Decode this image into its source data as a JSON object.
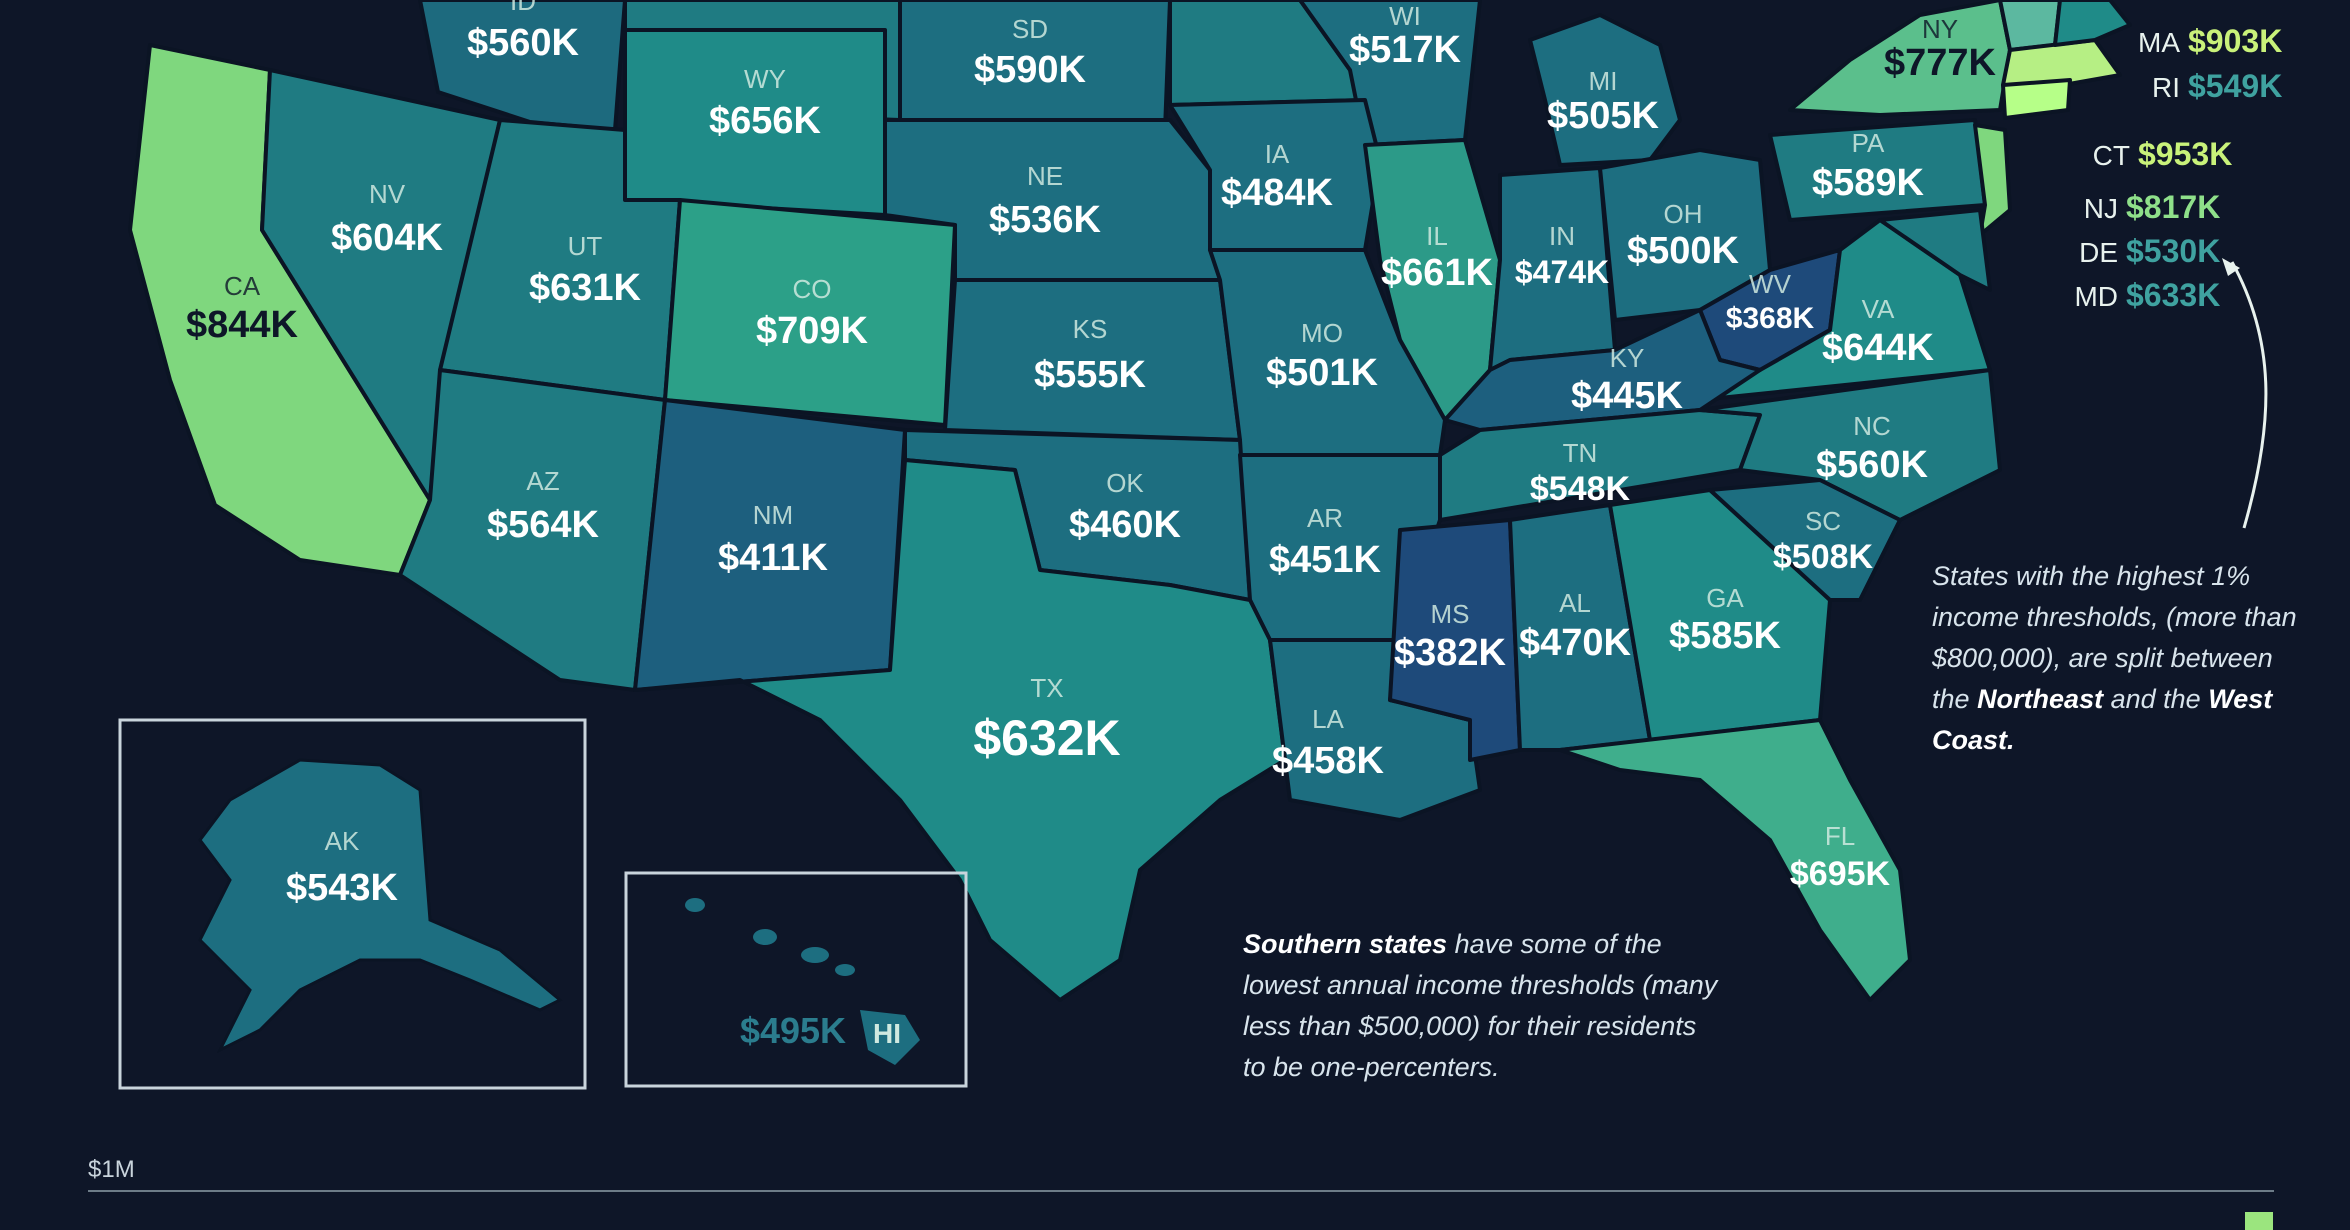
{
  "colors": {
    "background": "#0e1628",
    "scale_low": "#1e4a7a",
    "scale_high": "#b6ff88",
    "border": "#0b1424"
  },
  "states": {
    "id": {
      "abbr": "ID",
      "value": "$560K"
    },
    "sd": {
      "abbr": "SD",
      "value": "$590K"
    },
    "wi": {
      "abbr": "WI",
      "value": "$517K"
    },
    "ny": {
      "abbr": "NY",
      "value": "$777K"
    },
    "wy": {
      "abbr": "WY",
      "value": "$656K"
    },
    "mi": {
      "abbr": "MI",
      "value": "$505K"
    },
    "ca": {
      "abbr": "CA",
      "value": "$844K"
    },
    "nv": {
      "abbr": "NV",
      "value": "$604K"
    },
    "ne": {
      "abbr": "NE",
      "value": "$536K"
    },
    "ia": {
      "abbr": "IA",
      "value": "$484K"
    },
    "pa": {
      "abbr": "PA",
      "value": "$589K"
    },
    "ut": {
      "abbr": "UT",
      "value": "$631K"
    },
    "co": {
      "abbr": "CO",
      "value": "$709K"
    },
    "il": {
      "abbr": "IL",
      "value": "$661K"
    },
    "in": {
      "abbr": "IN",
      "value": "$474K"
    },
    "oh": {
      "abbr": "OH",
      "value": "$500K"
    },
    "wv": {
      "abbr": "WV",
      "value": "$368K"
    },
    "ks": {
      "abbr": "KS",
      "value": "$555K"
    },
    "mo": {
      "abbr": "MO",
      "value": "$501K"
    },
    "ky": {
      "abbr": "KY",
      "value": "$445K"
    },
    "va": {
      "abbr": "VA",
      "value": "$644K"
    },
    "az": {
      "abbr": "AZ",
      "value": "$564K"
    },
    "nm": {
      "abbr": "NM",
      "value": "$411K"
    },
    "ok": {
      "abbr": "OK",
      "value": "$460K"
    },
    "ar": {
      "abbr": "AR",
      "value": "$451K"
    },
    "tn": {
      "abbr": "TN",
      "value": "$548K"
    },
    "nc": {
      "abbr": "NC",
      "value": "$560K"
    },
    "sc": {
      "abbr": "SC",
      "value": "$508K"
    },
    "ms": {
      "abbr": "MS",
      "value": "$382K"
    },
    "al": {
      "abbr": "AL",
      "value": "$470K"
    },
    "ga": {
      "abbr": "GA",
      "value": "$585K"
    },
    "tx": {
      "abbr": "TX",
      "value": "$632K"
    },
    "la": {
      "abbr": "LA",
      "value": "$458K"
    },
    "fl": {
      "abbr": "FL",
      "value": "$695K"
    },
    "ak": {
      "abbr": "AK",
      "value": "$543K"
    },
    "hi": {
      "abbr": "HI",
      "value": "$495K"
    }
  },
  "side_list": [
    {
      "abbr": "MA",
      "value": "$903K",
      "color": "#c9f27a"
    },
    {
      "abbr": "RI",
      "value": "$549K",
      "color": "#3fa2a0"
    },
    {
      "abbr": "CT",
      "value": "$953K",
      "color": "#c9f27a"
    },
    {
      "abbr": "NJ",
      "value": "$817K",
      "color": "#8fe08a"
    },
    {
      "abbr": "DE",
      "value": "$530K",
      "color": "#3fa2a0"
    },
    {
      "abbr": "MD",
      "value": "$633K",
      "color": "#3fa2a0"
    }
  ],
  "notes": {
    "northeast": {
      "pre": "States with the highest 1% income thresholds, (more than $800,000), are split between the",
      "bold1": "Northeast",
      "mid": "and the",
      "bold2": "West Coast."
    },
    "south": {
      "bold": "Southern states",
      "rest": "have some of the lowest annual income thresholds (many less than $500,000) for their residents to be one-percenters."
    }
  },
  "scale": {
    "label": "$1M"
  }
}
